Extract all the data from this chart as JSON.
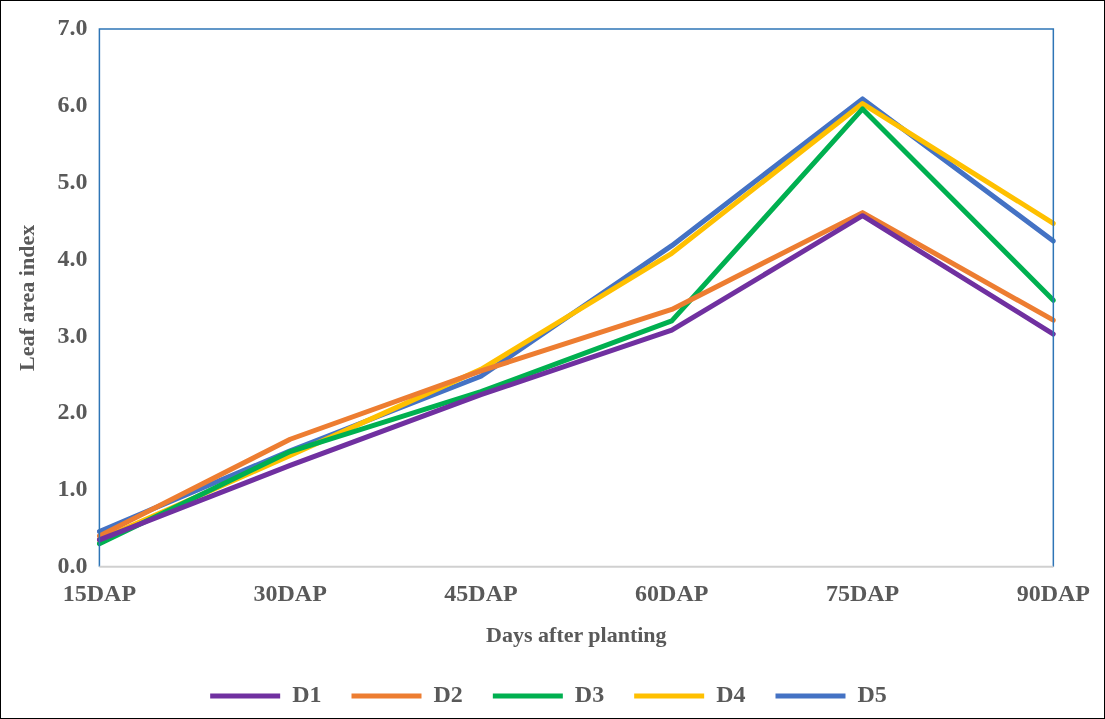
{
  "chart_data": {
    "type": "line",
    "xlabel": "Days after planting",
    "ylabel": "Leaf area index",
    "categories": [
      "15DAP",
      "30DAP",
      "45DAP",
      "60DAP",
      "75DAP",
      "90DAP"
    ],
    "series": [
      {
        "name": "D1",
        "color": "#7030a0",
        "values": [
          0.35,
          1.32,
          2.24,
          3.08,
          4.57,
          3.03
        ]
      },
      {
        "name": "D2",
        "color": "#ed7d31",
        "values": [
          0.4,
          1.66,
          2.55,
          3.35,
          4.61,
          3.21
        ]
      },
      {
        "name": "D3",
        "color": "#00b050",
        "values": [
          0.3,
          1.5,
          2.28,
          3.2,
          5.96,
          3.47
        ]
      },
      {
        "name": "D4",
        "color": "#ffc000",
        "values": [
          0.35,
          1.45,
          2.57,
          4.08,
          6.03,
          4.47
        ]
      },
      {
        "name": "D5",
        "color": "#4472c4",
        "values": [
          0.46,
          1.51,
          2.48,
          4.18,
          6.09,
          4.24
        ]
      }
    ],
    "ylim": [
      0,
      7
    ],
    "yticks": [
      {
        "value": 0,
        "label": "0.0"
      },
      {
        "value": 1,
        "label": "1.0"
      },
      {
        "value": 2,
        "label": "2.0"
      },
      {
        "value": 3,
        "label": "3.0"
      },
      {
        "value": 4,
        "label": "4.0"
      },
      {
        "value": 5,
        "label": "5.0"
      },
      {
        "value": 6,
        "label": "6.0"
      },
      {
        "value": 7,
        "label": "7.0"
      }
    ],
    "grid": false,
    "legend": "bottom",
    "marker": "none",
    "line_style": "solid"
  }
}
